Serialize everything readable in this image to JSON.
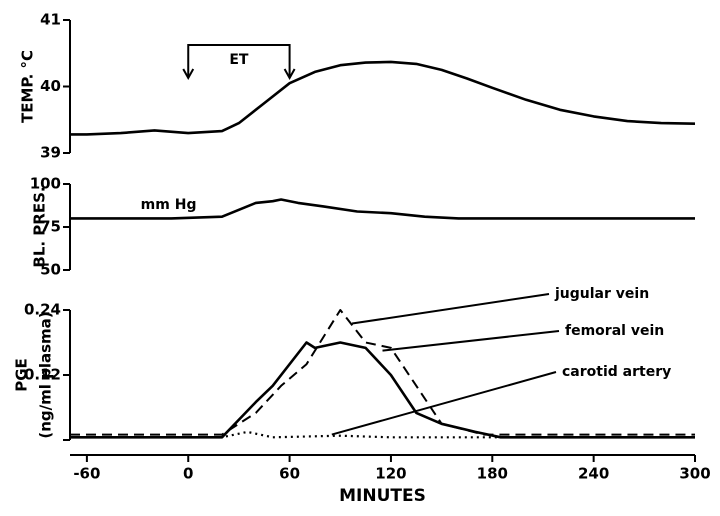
{
  "chart_data": [
    {
      "type": "line",
      "ylabel": [
        "TEMP. °C"
      ],
      "ylim": [
        39,
        41
      ],
      "yticks": [
        39,
        40,
        41
      ],
      "annotations": [
        {
          "text": "ET",
          "x": [
            0,
            60
          ]
        }
      ],
      "x": [
        -70,
        -60,
        -40,
        -20,
        0,
        20,
        30,
        45,
        60,
        75,
        90,
        105,
        120,
        135,
        150,
        165,
        180,
        200,
        220,
        240,
        260,
        280,
        300
      ],
      "series": [
        {
          "name": null,
          "color": "#000000",
          "line_style": "solid",
          "values": [
            39.28,
            39.28,
            39.3,
            39.34,
            39.3,
            39.33,
            39.45,
            39.75,
            40.05,
            40.22,
            40.32,
            40.36,
            40.37,
            40.34,
            40.25,
            40.12,
            39.98,
            39.8,
            39.65,
            39.55,
            39.48,
            39.45,
            39.44
          ]
        }
      ]
    },
    {
      "type": "line",
      "ylabel": [
        "BL. PRES."
      ],
      "ylim": [
        50,
        100
      ],
      "yticks": [
        50,
        75,
        100
      ],
      "annotations": [
        {
          "text": "mm Hg",
          "x": [
            -40
          ]
        }
      ],
      "x": [
        -70,
        -40,
        -10,
        20,
        30,
        40,
        50,
        55,
        65,
        80,
        100,
        120,
        140,
        160,
        200,
        250,
        300
      ],
      "series": [
        {
          "name": null,
          "color": "#000000",
          "line_style": "solid",
          "values": [
            80,
            80,
            80,
            81,
            85,
            89,
            90,
            91,
            89,
            87,
            84,
            83,
            81,
            80,
            80,
            80,
            80
          ]
        }
      ]
    },
    {
      "type": "line",
      "ylabel": [
        "PGE",
        "(ng/ml plasma)"
      ],
      "ylim": [
        0,
        0.24
      ],
      "yticks": [
        0.12,
        0.24
      ],
      "xlim": [
        -70,
        300
      ],
      "xticks": [
        -60,
        0,
        60,
        120,
        180,
        240,
        300
      ],
      "xlabel": "MINUTES",
      "series": [
        {
          "name": "jugular vein",
          "color": "#000000",
          "line_style": "dashed",
          "x": [
            -70,
            20,
            40,
            55,
            70,
            90,
            105,
            120,
            135,
            150,
            175,
            300
          ],
          "values": [
            0.01,
            0.01,
            0.05,
            0.1,
            0.14,
            0.24,
            0.18,
            0.17,
            0.1,
            0.03,
            0.01,
            0.01
          ]
        },
        {
          "name": "femoral vein",
          "color": "#000000",
          "line_style": "solid",
          "x": [
            -70,
            20,
            40,
            50,
            70,
            75,
            90,
            105,
            120,
            135,
            150,
            170,
            185,
            300
          ],
          "values": [
            0.005,
            0.005,
            0.07,
            0.1,
            0.18,
            0.17,
            0.18,
            0.17,
            0.12,
            0.05,
            0.03,
            0.015,
            0.005,
            0.005
          ]
        },
        {
          "name": "carotid artery",
          "color": "#000000",
          "line_style": "dotted",
          "x": [
            -70,
            20,
            35,
            50,
            90,
            120,
            300
          ],
          "values": [
            0.005,
            0.005,
            0.015,
            0.005,
            0.008,
            0.005,
            0.005
          ]
        }
      ]
    }
  ]
}
